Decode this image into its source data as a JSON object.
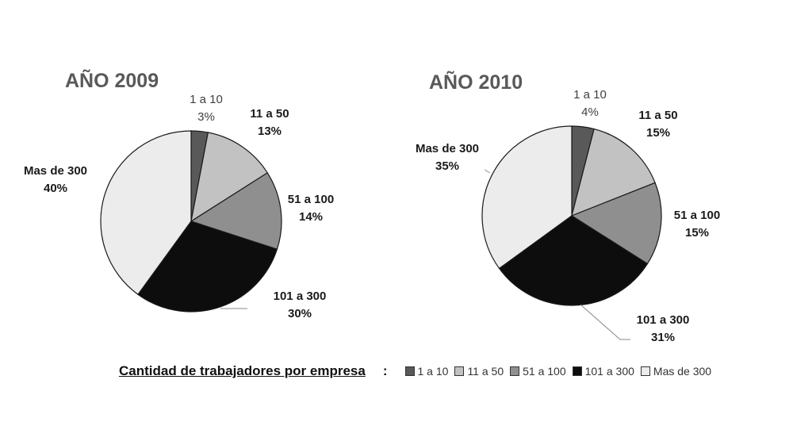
{
  "chart_data": [
    {
      "type": "pie",
      "title": "AÑO 2009",
      "categories": [
        "1 a 10",
        "11 a 50",
        "51 a 100",
        "101 a 300",
        "Mas de 300"
      ],
      "values": [
        3,
        13,
        14,
        30,
        40
      ],
      "value_labels": [
        "3%",
        "13%",
        "14%",
        "30%",
        "40%"
      ]
    },
    {
      "type": "pie",
      "title": "AÑO 2010",
      "categories": [
        "1 a 10",
        "11 a 50",
        "51 a 100",
        "101 a 300",
        "Mas de 300"
      ],
      "values": [
        4,
        15,
        15,
        31,
        35
      ],
      "value_labels": [
        "4%",
        "15%",
        "15%",
        "31%",
        "35%"
      ]
    }
  ],
  "colors": [
    "#595959",
    "#c2c2c2",
    "#8f8f8f",
    "#0d0d0d",
    "#ececec"
  ],
  "legend": {
    "title": "Cantidad de trabajadores por empresa",
    "suffix": ":",
    "items": [
      "1 a 10",
      "11 a 50",
      "51 a 100",
      "101 a 300",
      "Mas de 300"
    ]
  }
}
